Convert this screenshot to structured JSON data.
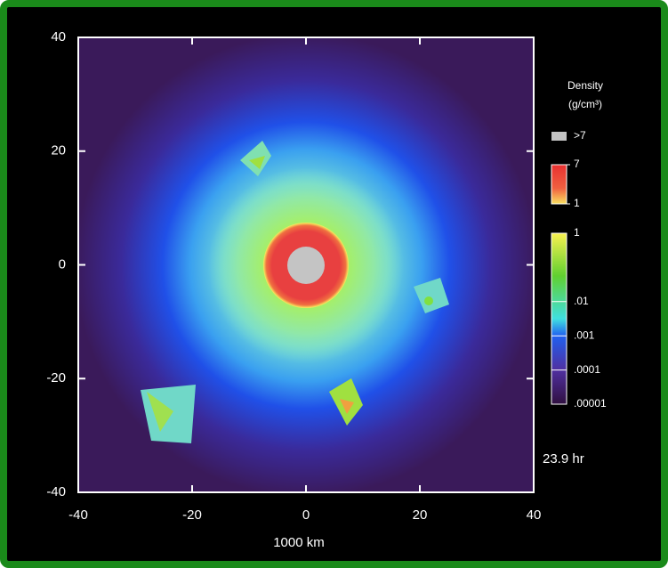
{
  "chart_data": {
    "type": "density-map",
    "xlabel": "1000 km",
    "xlim": [
      -40,
      40
    ],
    "ylim": [
      -40,
      40
    ],
    "xticks": [
      -40,
      -20,
      0,
      20,
      40
    ],
    "yticks": [
      -40,
      -20,
      0,
      20,
      40
    ],
    "time_label": "23.9 hr",
    "colorbar": {
      "title": "Density",
      "unit": "(g/cm³)",
      "saturation_label": ">7",
      "high": {
        "lim": [
          1,
          7
        ],
        "ticks": [
          7,
          1
        ]
      },
      "low": {
        "scale": "log",
        "lim": [
          1e-05,
          1
        ],
        "ticks": [
          1,
          {
            "value": 0.01,
            "label": ".01"
          },
          {
            "value": 0.001,
            "label": ".001"
          },
          {
            "value": 0.0001,
            "label": ".0001"
          },
          {
            "value": 1e-05,
            "label": ".00001"
          }
        ]
      }
    }
  }
}
